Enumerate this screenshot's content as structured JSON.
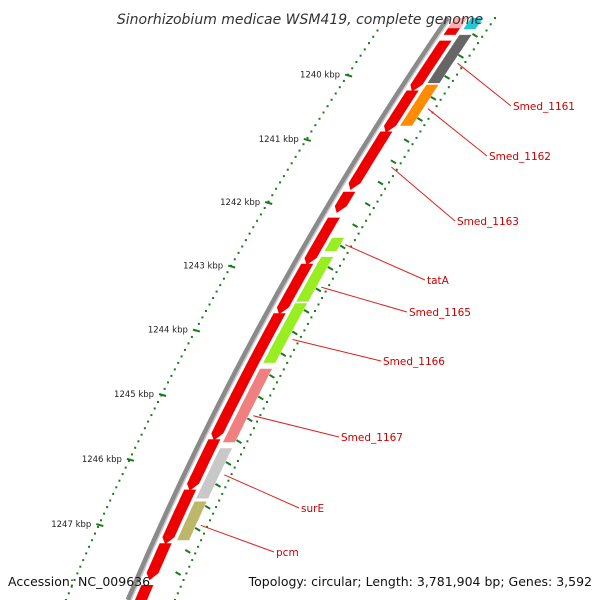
{
  "title": "Sinorhizobium medicae WSM419, complete genome",
  "footer": {
    "accession": "Accession: NC_009636",
    "topology": "Topology: circular; Length: 3,781,904 bp; Genes: 3,592"
  },
  "kbp_labels": [
    "1240 kbp",
    "1241 kbp",
    "1242 kbp",
    "1243 kbp",
    "1244 kbp",
    "1245 kbp",
    "1246 kbp",
    "1247 kbp"
  ],
  "gene_labels": [
    "Smed_1161",
    "Smed_1162",
    "Smed_1163",
    "tatA",
    "Smed_1165",
    "Smed_1166",
    "Smed_1167",
    "surE",
    "pcm"
  ],
  "colors": {
    "forward_strand": "#ee0000",
    "backbone": "#8a8a8a",
    "tick_green": "#1a7a1a",
    "label_red": "#cc0000",
    "leader": "#dd2222"
  },
  "feature_colors": {
    "Smed_1161": "#666666",
    "Smed_1162": "#ff8c00",
    "tatA": "#99ee22",
    "Smed_1165": "#99ee22",
    "Smed_1166": "#99ee22",
    "Smed_1167": "#f08080",
    "surE": "#c8c8c8",
    "pcm": "#bdb76b",
    "top_cyan": "#22c8d8",
    "top_pink": "#ffb0b0"
  }
}
